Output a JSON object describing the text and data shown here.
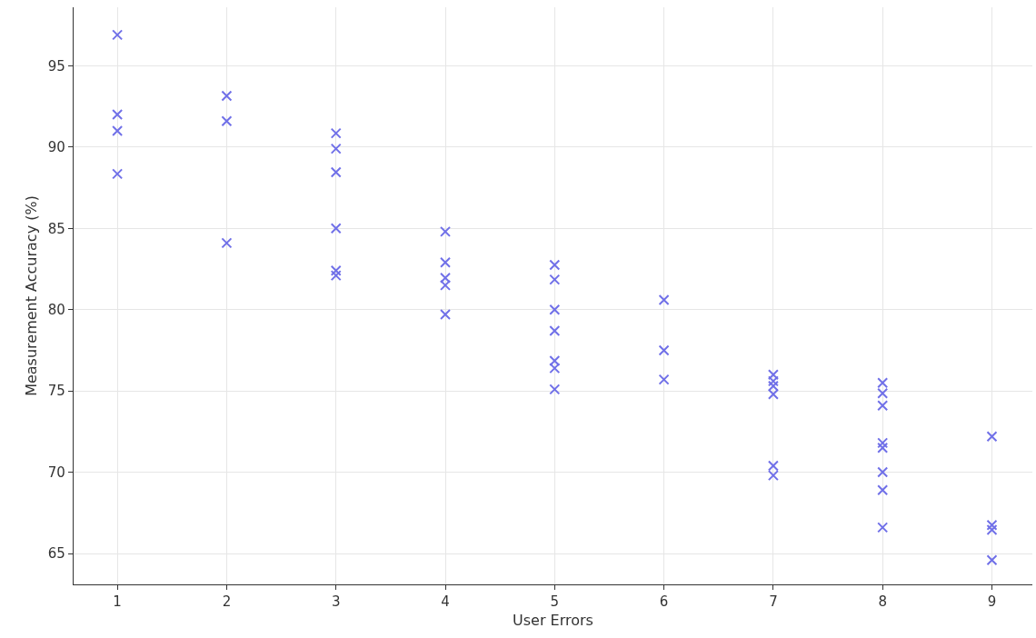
{
  "chart_data": {
    "type": "scatter",
    "xlabel": "User Errors",
    "ylabel": "Measurement Accuracy (%)",
    "x": [
      1,
      1,
      1,
      1,
      2,
      2,
      2,
      3,
      3,
      3,
      3,
      3,
      3,
      4,
      4,
      4,
      4,
      4,
      5,
      5,
      5,
      5,
      5,
      5,
      5,
      6,
      6,
      6,
      7,
      7,
      7,
      7,
      7,
      7,
      8,
      8,
      8,
      8,
      8,
      8,
      8,
      8,
      9,
      9,
      9,
      9
    ],
    "values": [
      96.9,
      92.0,
      91.0,
      88.35,
      93.15,
      91.6,
      84.1,
      90.85,
      89.9,
      88.45,
      85.0,
      82.4,
      82.1,
      84.8,
      82.9,
      81.95,
      81.5,
      79.7,
      82.75,
      81.85,
      80.0,
      78.7,
      76.85,
      76.4,
      75.1,
      80.6,
      77.5,
      75.7,
      76.0,
      75.6,
      75.3,
      74.8,
      70.4,
      69.8,
      75.5,
      74.85,
      74.1,
      71.8,
      71.5,
      70.0,
      68.9,
      66.6,
      72.2,
      66.75,
      66.45,
      64.6
    ],
    "color": "#7070e8",
    "marker": "cross",
    "xlim": [
      0.6,
      9.37
    ],
    "ylim": [
      63.1,
      98.6
    ],
    "xticks": [
      1,
      2,
      3,
      4,
      5,
      6,
      7,
      8,
      9
    ],
    "yticks": [
      65,
      70,
      75,
      80,
      85,
      90,
      95
    ],
    "grid": true
  }
}
